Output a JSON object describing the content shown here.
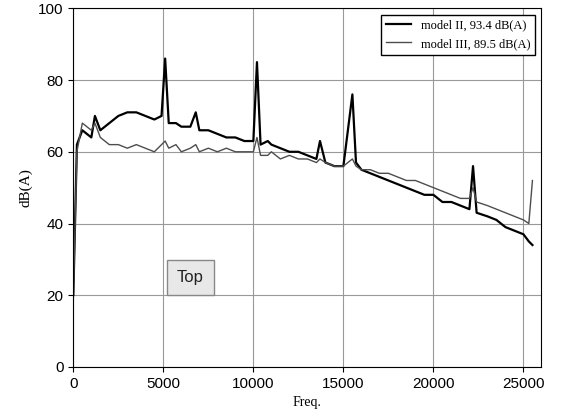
{
  "chart_data": {
    "type": "line",
    "x_label": "Freq.",
    "y_label": "dB(A)",
    "annotations": [
      "Top"
    ],
    "x": [
      0,
      200,
      500,
      1000,
      1200,
      1500,
      2000,
      2500,
      3000,
      3500,
      4000,
      4500,
      4900,
      5100,
      5300,
      5700,
      6000,
      6500,
      6800,
      7000,
      7500,
      8000,
      8500,
      9000,
      9500,
      10000,
      10200,
      10400,
      10800,
      11000,
      11500,
      12000,
      12500,
      13000,
      13500,
      13700,
      14000,
      14500,
      15000,
      15500,
      15700,
      16000,
      16500,
      17000,
      17500,
      18000,
      18500,
      19000,
      19500,
      20000,
      20500,
      21000,
      21500,
      22000,
      22200,
      22400,
      23000,
      23500,
      24000,
      24500,
      25000,
      25300,
      25500
    ],
    "series": [
      {
        "name": "model II, 93.4 dB(A)",
        "color": "#000000",
        "values": [
          20,
          62,
          66,
          64,
          70,
          66,
          68,
          70,
          71,
          71,
          70,
          69,
          70,
          86,
          68,
          68,
          67,
          67,
          71,
          66,
          66,
          65,
          64,
          64,
          63,
          63,
          85,
          62,
          63,
          62,
          61,
          60,
          60,
          59,
          58,
          63,
          57,
          56,
          56,
          76,
          57,
          55,
          54,
          53,
          52,
          51,
          50,
          49,
          48,
          48,
          46,
          46,
          45,
          44,
          56,
          43,
          42,
          41,
          39,
          38,
          37,
          35,
          34
        ]
      },
      {
        "name": "model III, 89.5 dB(A)",
        "color": "#4d4d4d",
        "values": [
          20,
          60,
          68,
          66,
          68,
          64,
          62,
          62,
          61,
          62,
          61,
          60,
          62,
          63,
          61,
          62,
          60,
          61,
          62,
          60,
          61,
          60,
          61,
          60,
          60,
          60,
          64,
          59,
          59,
          60,
          58,
          59,
          58,
          58,
          57,
          58,
          57,
          56,
          56,
          58,
          56,
          55,
          55,
          54,
          54,
          53,
          52,
          52,
          51,
          50,
          49,
          48,
          47,
          47,
          50,
          46,
          45,
          44,
          43,
          42,
          41,
          40,
          52
        ]
      }
    ],
    "xlim": [
      0,
      26000
    ],
    "xticks": [
      0,
      5000,
      10000,
      15000,
      20000,
      25000
    ],
    "ylim": [
      0,
      100
    ],
    "yticks": [
      0,
      20,
      40,
      60,
      80,
      100
    ],
    "grid": true,
    "legend": "upper right"
  }
}
